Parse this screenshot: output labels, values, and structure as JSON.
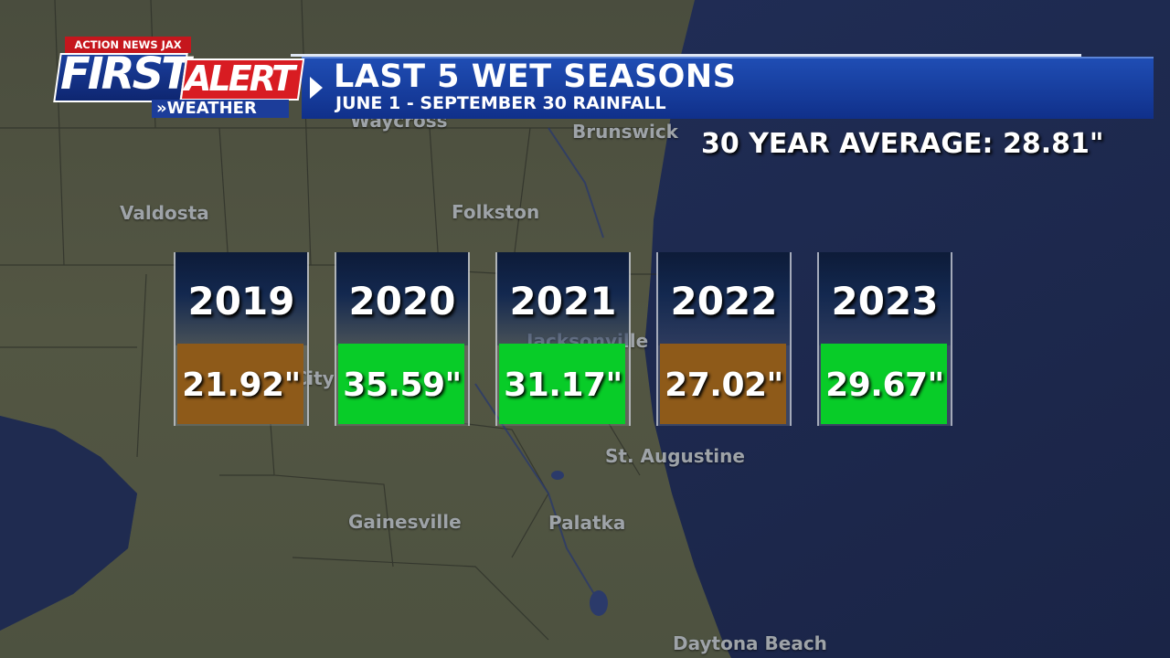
{
  "brand": {
    "station": "ACTION NEWS JAX",
    "first": "FIRST",
    "alert": "ALERT",
    "weather": "»WEATHER"
  },
  "header": {
    "title": "LAST 5 WET SEASONS",
    "subtitle": "JUNE 1 - SEPTEMBER 30 RAINFALL"
  },
  "average_text": "30 YEAR AVERAGE: 28.81\"",
  "cities": {
    "waycross": "Waycross",
    "brunswick": "Brunswick",
    "valdosta": "Valdosta",
    "folkston": "Folkston",
    "jacksonville": "Jacksonville",
    "lake_city": "Lake City",
    "st_augustine": "St. Augustine",
    "gainesville": "Gainesville",
    "palatka": "Palatka",
    "daytona_beach": "Daytona Beach"
  },
  "seasons": [
    {
      "year": "2019",
      "rainfall": "21.92\"",
      "status": "below"
    },
    {
      "year": "2020",
      "rainfall": "35.59\"",
      "status": "above"
    },
    {
      "year": "2021",
      "rainfall": "31.17\"",
      "status": "above"
    },
    {
      "year": "2022",
      "rainfall": "27.02\"",
      "status": "below"
    },
    {
      "year": "2023",
      "rainfall": "29.67\"",
      "status": "above"
    }
  ],
  "colors": {
    "below_average": "#8e5a19",
    "above_average": "#08cc28",
    "header_blue": "#1a44a8",
    "alert_red": "#d81c22"
  }
}
